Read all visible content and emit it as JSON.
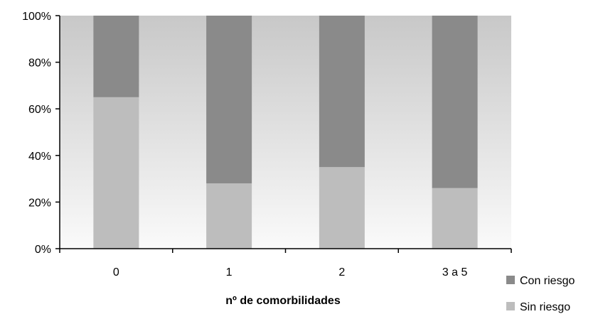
{
  "chart_data": {
    "type": "bar",
    "stacked": true,
    "percent": true,
    "categories": [
      "0",
      "1",
      "2",
      "3 a 5"
    ],
    "series": [
      {
        "name": "Sin riesgo",
        "values": [
          65,
          28,
          35,
          26
        ],
        "color": "#bdbdbd"
      },
      {
        "name": "Con riesgo",
        "values": [
          35,
          72,
          65,
          74
        ],
        "color": "#8a8a8a"
      }
    ],
    "xlabel": "nº de comorbilidades",
    "ylim": [
      0,
      100
    ],
    "yticks": [
      "0%",
      "20%",
      "40%",
      "60%",
      "80%",
      "100%"
    ],
    "legend_position": "bottom-right",
    "grid": false,
    "plot_background": "gradient-gray"
  }
}
